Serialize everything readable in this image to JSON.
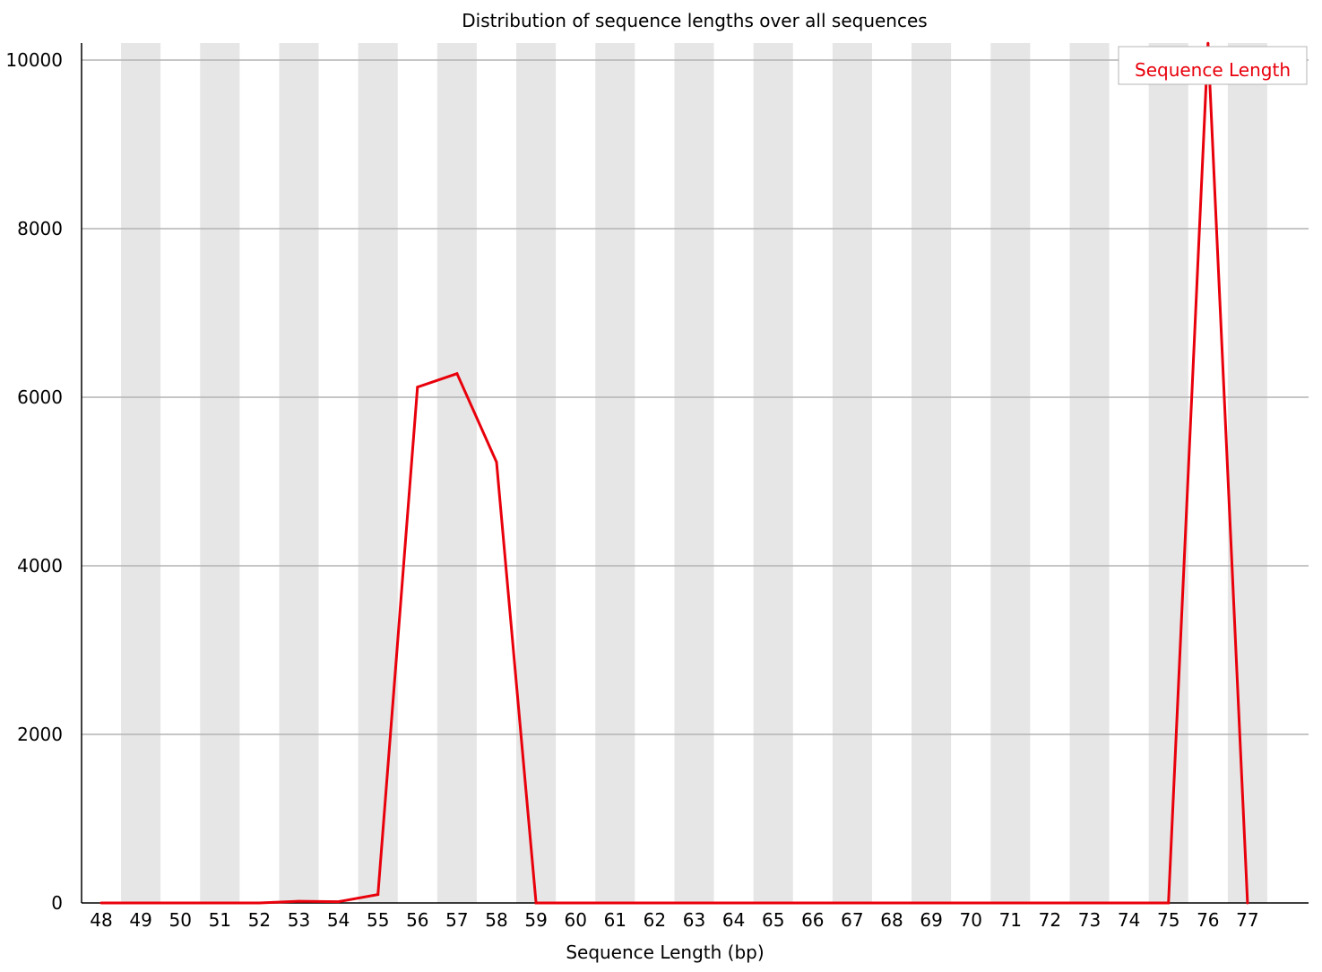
{
  "chart_data": {
    "type": "line",
    "title": "Distribution of sequence lengths over all sequences",
    "xlabel": "Sequence Length (bp)",
    "ylabel": "",
    "categories": [
      "48",
      "49",
      "50",
      "51",
      "52",
      "53",
      "54",
      "55",
      "56",
      "57",
      "58",
      "59",
      "60",
      "61",
      "62",
      "63",
      "64",
      "65",
      "66",
      "67",
      "68",
      "69",
      "70",
      "71",
      "72",
      "73",
      "74",
      "75",
      "76",
      "77"
    ],
    "series": [
      {
        "name": "Sequence Length",
        "color": "#e8000b",
        "values": [
          0,
          0,
          0,
          0,
          0,
          20,
          15,
          100,
          6120,
          6280,
          5230,
          0,
          0,
          0,
          0,
          0,
          0,
          0,
          0,
          0,
          0,
          0,
          0,
          0,
          0,
          0,
          0,
          0,
          10200,
          0
        ]
      }
    ],
    "yticks": [
      0,
      2000,
      4000,
      6000,
      8000,
      10000
    ],
    "ylim": [
      0,
      10200
    ],
    "grid": true,
    "band_color": "#e6e6e6",
    "gridline_color": "#b4b4b4",
    "legend_position": "top-right"
  }
}
